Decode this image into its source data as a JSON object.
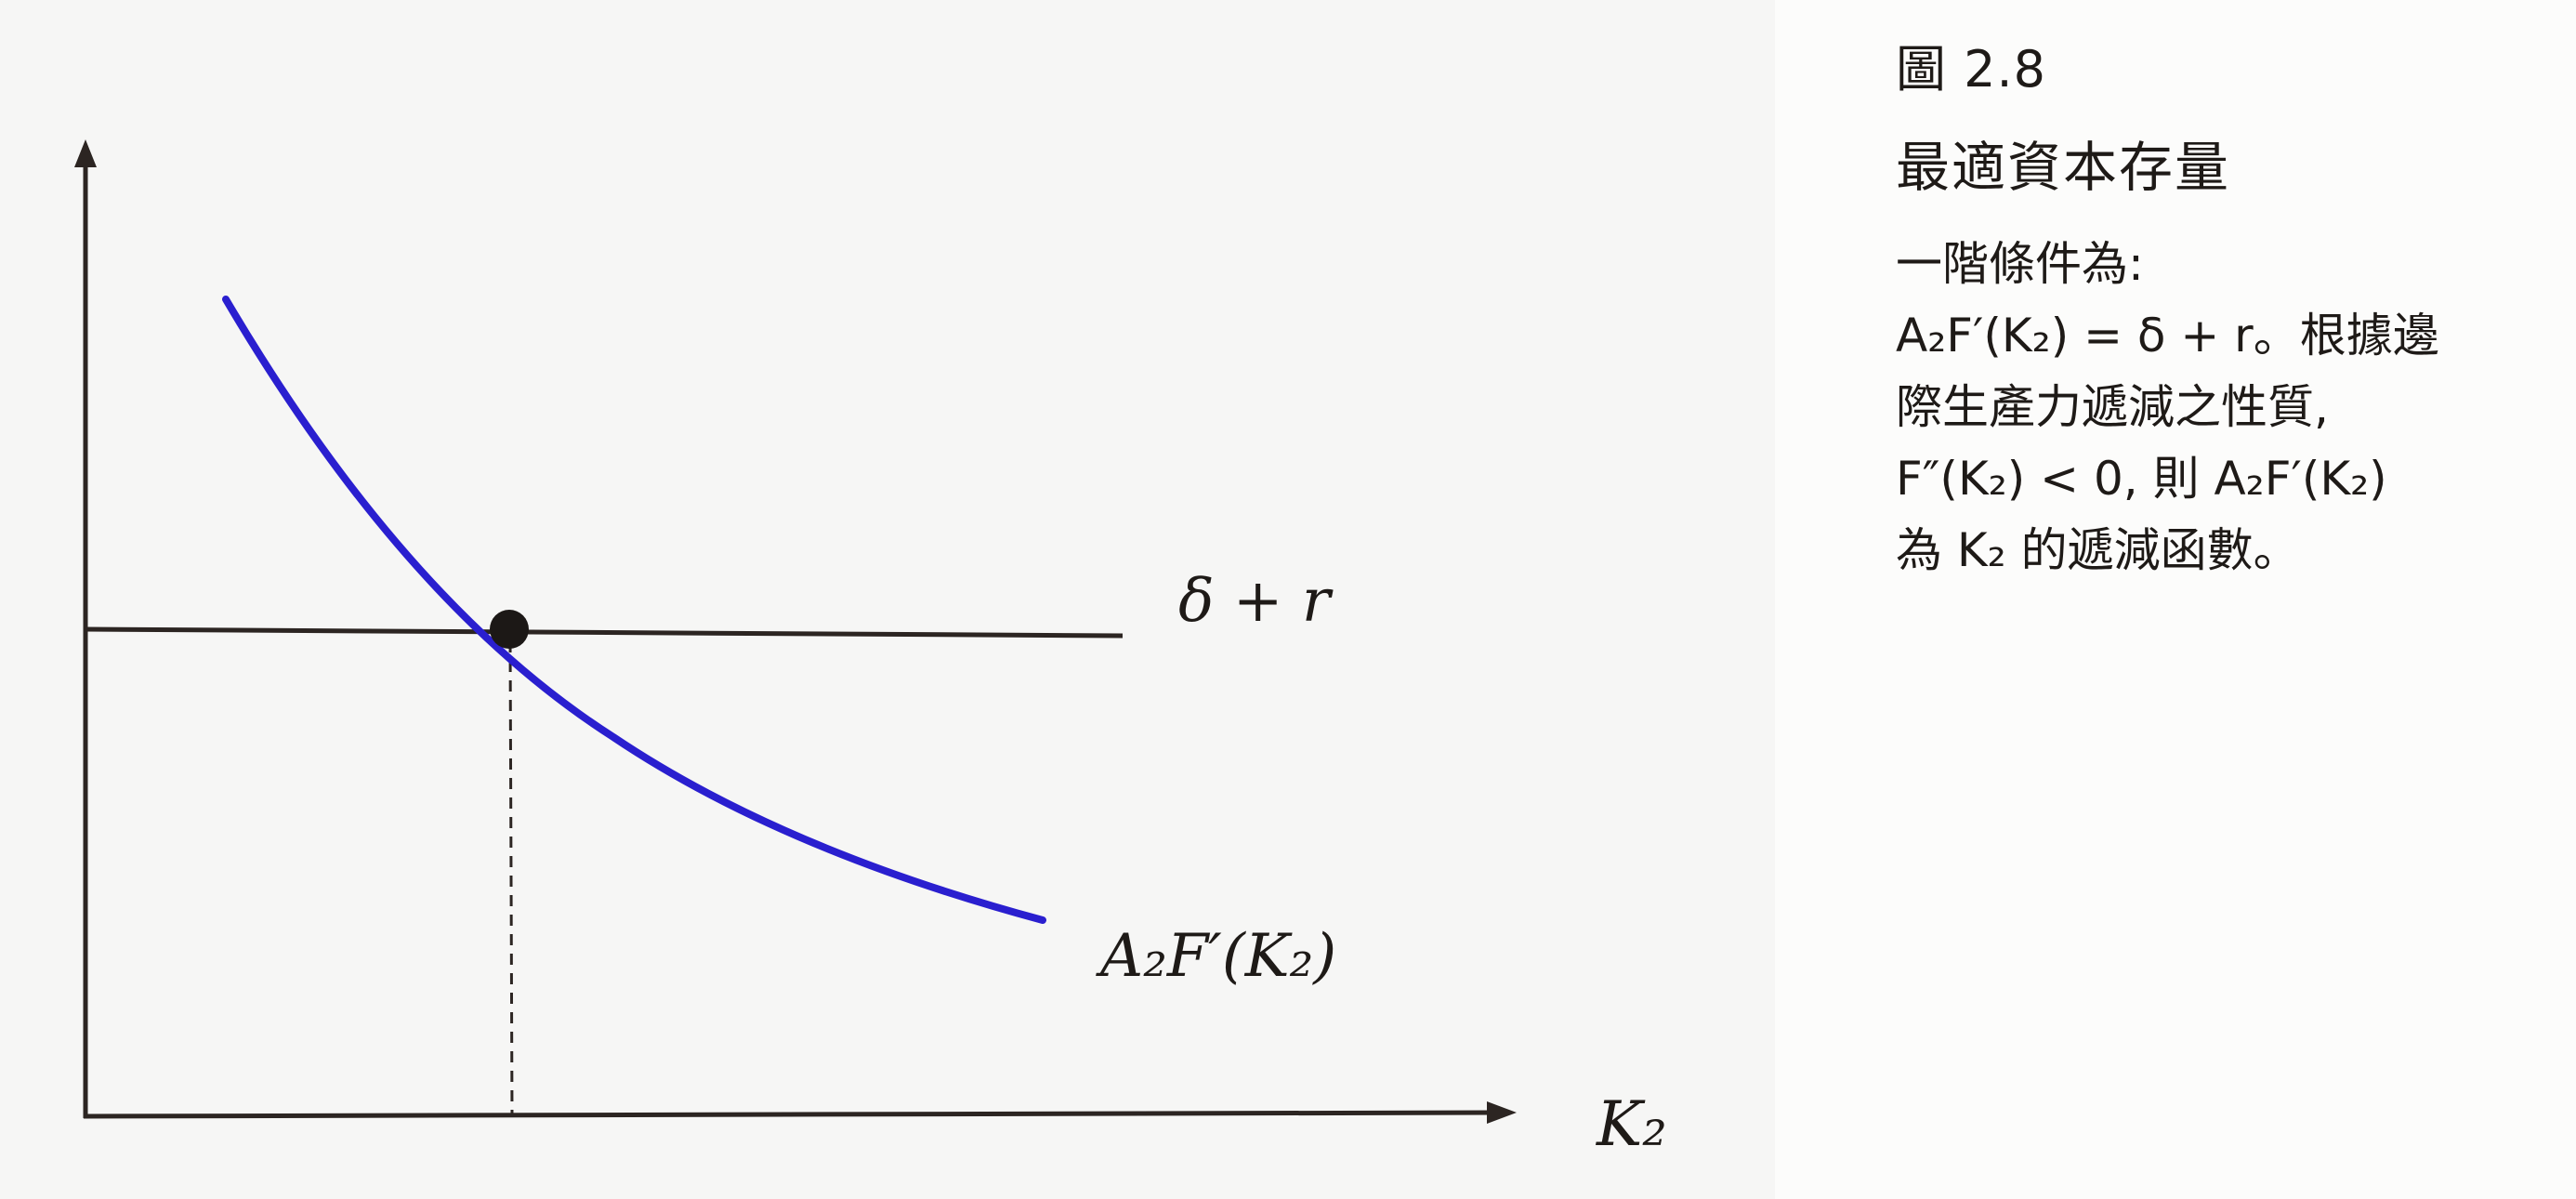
{
  "diagram": {
    "horizontal_line_label": "δ + r",
    "curve_label": "A₂F′(K₂)",
    "x_axis_label": "K₂",
    "colors": {
      "curve": "#2a1fcf",
      "axes": "#2c2522",
      "horizontal_line": "#2c2522",
      "intersection_point": "#1c1816"
    }
  },
  "caption": {
    "figure_number": "圖 2.8",
    "title": "最適資本存量",
    "lines": [
      "一階條件為:",
      "A₂F′(K₂) = δ + r。根據邊",
      "際生產力遞減之性質,",
      "F″(K₂) < 0, 則 A₂F′(K₂)",
      "為 K₂ 的遞減函數。"
    ]
  }
}
